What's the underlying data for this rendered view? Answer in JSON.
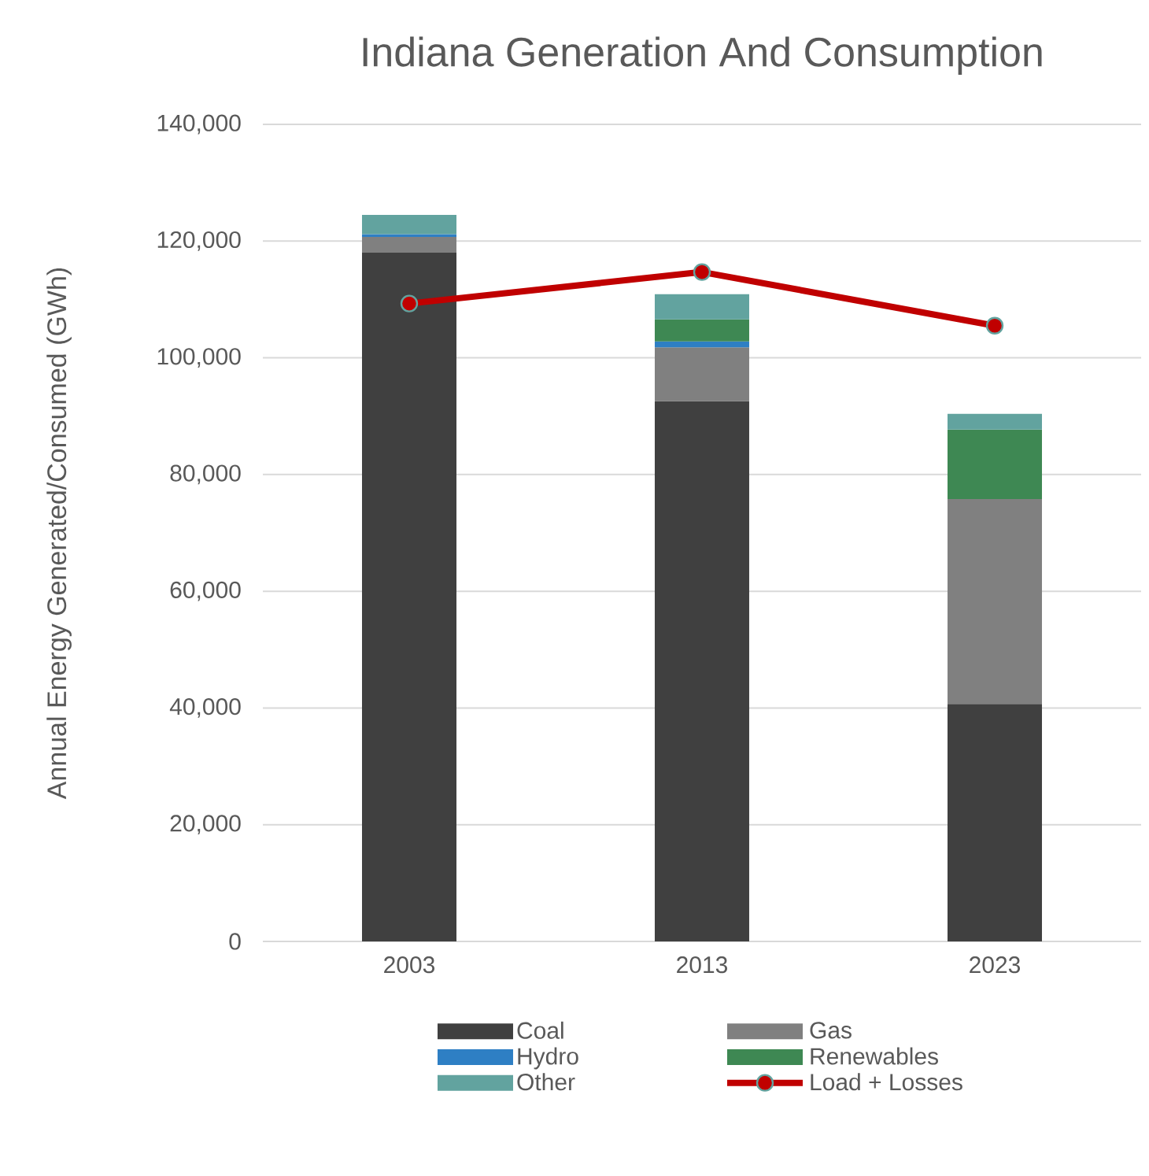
{
  "chart_data": {
    "type": "bar",
    "stacked": true,
    "title": "Indiana Generation And Consumption",
    "ylabel": "Annual Energy Generated/Consumed (GWh)",
    "categories": [
      "2003",
      "2013",
      "2023"
    ],
    "series": [
      {
        "name": "Coal",
        "color": "#404040",
        "values": [
          118000,
          92600,
          40700
        ]
      },
      {
        "name": "Gas",
        "color": "#808080",
        "values": [
          2700,
          9200,
          35100
        ]
      },
      {
        "name": "Hydro",
        "color": "#2e7fc4",
        "values": [
          500,
          1000,
          0
        ]
      },
      {
        "name": "Renewables",
        "color": "#3e8853",
        "values": [
          null,
          3800,
          11900
        ]
      },
      {
        "name": "Other",
        "color": "#62a39f",
        "values": [
          3300,
          4300,
          2700
        ]
      },
      {
        "name": "Load + Losses",
        "type": "line",
        "color": "#c00000",
        "marker": "circle",
        "values": [
          109300,
          114700,
          105500
        ]
      }
    ],
    "ylim": [
      0,
      140000
    ],
    "yticks": [
      {
        "value": 0,
        "label": "0"
      },
      {
        "value": 20000,
        "label": "20,000"
      },
      {
        "value": 40000,
        "label": "40,000"
      },
      {
        "value": 60000,
        "label": "60,000"
      },
      {
        "value": 80000,
        "label": "80,000"
      },
      {
        "value": 100000,
        "label": "100,000"
      },
      {
        "value": 120000,
        "label": "120,000"
      },
      {
        "value": 140000,
        "label": "140,000"
      }
    ],
    "grid": "y",
    "legend": "bottom"
  }
}
